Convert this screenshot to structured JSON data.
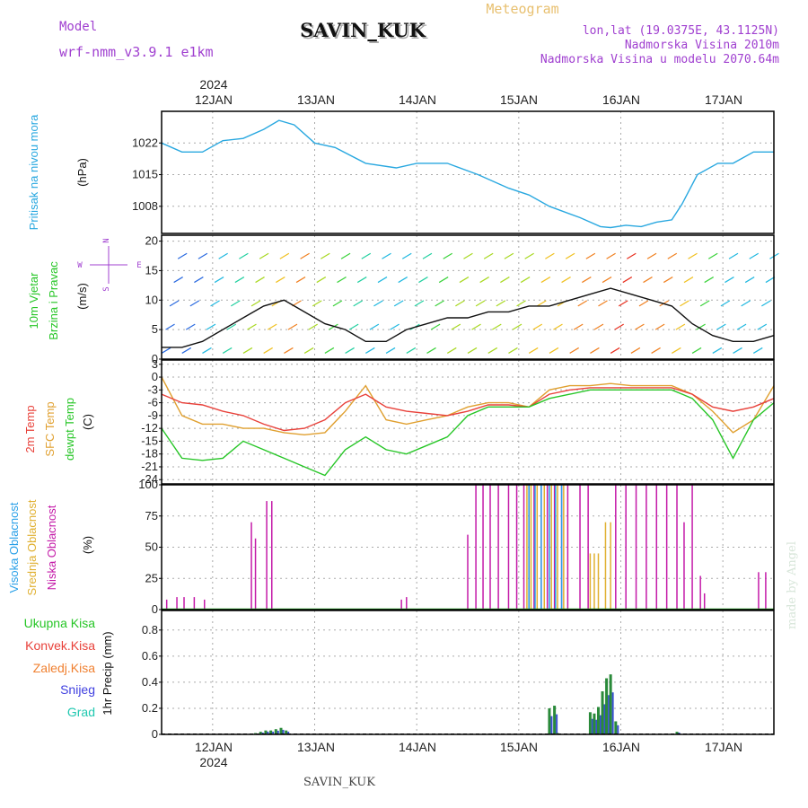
{
  "header": {
    "model_label": "Model",
    "model_name": "wrf-nmm_v3.9.1 e1km",
    "title": "SAVIN_KUK",
    "subtitle": "Meteogram",
    "lonlat": "lon,lat (19.0375E, 43.1125N)",
    "elevation": "Nadmorska Visina 2010m",
    "model_elevation": "Nadmorska Visina u modelu 2070.64m",
    "watermark": "made by Angel",
    "footer": "SAVIN_KUK"
  },
  "colors": {
    "pressure": "#29a8e0",
    "temp2m": "#e8413a",
    "sfc": "#e0a030",
    "dewpt": "#27c627",
    "low": "#c41aa8",
    "mid": "#e0b030",
    "high": "#2aa0e8",
    "grid": "#aaaaaa"
  },
  "chart_data": [
    {
      "type": "line",
      "panel": "pressure",
      "ylabel_left": "Pritisak na nivou mora",
      "ylabel": "(hPa)",
      "x_ticks": [
        "12JAN",
        "13JAN",
        "14JAN",
        "15JAN",
        "16JAN",
        "17JAN"
      ],
      "x_year": "2024",
      "yticks": [
        "1008",
        "1015",
        "1022"
      ],
      "ylim": [
        1002,
        1029
      ],
      "grid": true,
      "series": [
        {
          "x": [
            11.5,
            11.7,
            11.9,
            12.1,
            12.3,
            12.5,
            12.65,
            12.8,
            13.0,
            13.2,
            13.5,
            13.8,
            14.0,
            14.3,
            14.6,
            14.9,
            15.1,
            15.3,
            15.6,
            15.8,
            15.9,
            16.05,
            16.2,
            16.35,
            16.5,
            16.6,
            16.75,
            16.95,
            17.1,
            17.3,
            17.5
          ],
          "values": [
            1022,
            1020,
            1020,
            1022.5,
            1023,
            1025,
            1027,
            1026,
            1022,
            1021,
            1017.5,
            1016.5,
            1017.5,
            1017.5,
            1015,
            1012,
            1010.5,
            1008,
            1005.5,
            1003.5,
            1003.3,
            1003.8,
            1003.5,
            1004.5,
            1005,
            1008.5,
            1015,
            1017.5,
            1017.5,
            1020,
            1020
          ]
        }
      ]
    },
    {
      "type": "scatter",
      "panel": "wind",
      "ylabel_left": "10m Vjetar Brzina i Pravac",
      "ylabel": "(m/s)",
      "compass": [
        "N",
        "E",
        "W",
        "S"
      ],
      "yticks": [
        "0",
        "5",
        "10",
        "15",
        "20"
      ],
      "ylim": [
        0,
        21
      ],
      "grid": true,
      "x": [
        11.5,
        11.7,
        11.9,
        12.1,
        12.3,
        12.5,
        12.7,
        12.9,
        13.1,
        13.3,
        13.5,
        13.7,
        13.9,
        14.1,
        14.3,
        14.5,
        14.7,
        14.9,
        15.1,
        15.3,
        15.5,
        15.7,
        15.9,
        16.1,
        16.3,
        16.5,
        16.7,
        16.9,
        17.1,
        17.3,
        17.5
      ],
      "speed": [
        2,
        2,
        3,
        5,
        7,
        9,
        10,
        8,
        6,
        5,
        3,
        3,
        5,
        6,
        7,
        7,
        8,
        8,
        9,
        9,
        10,
        11,
        12,
        11,
        10,
        9,
        6,
        4,
        3,
        3,
        4
      ]
    },
    {
      "type": "line",
      "panel": "temperature",
      "ylabel_left": "2m Temp",
      "ylabel_mid": "SFC Temp",
      "ylabel_right": "dewpt Temp",
      "ylabel": "(C)",
      "yticks": [
        "3",
        "0",
        "-3",
        "-6",
        "-9",
        "-12",
        "-15",
        "-18",
        "-21",
        "-24"
      ],
      "ylim": [
        -25,
        4
      ],
      "grid": true,
      "x": [
        11.5,
        11.7,
        11.9,
        12.1,
        12.3,
        12.5,
        12.7,
        12.9,
        13.1,
        13.3,
        13.5,
        13.7,
        13.9,
        14.1,
        14.3,
        14.5,
        14.7,
        14.9,
        15.1,
        15.3,
        15.5,
        15.7,
        15.9,
        16.1,
        16.3,
        16.5,
        16.7,
        16.9,
        17.1,
        17.3,
        17.5
      ],
      "series": [
        {
          "name": "2m Temp",
          "values": [
            -4,
            -6,
            -6.5,
            -8,
            -9,
            -11,
            -12.5,
            -12,
            -10,
            -6,
            -4,
            -7,
            -8,
            -8.5,
            -9,
            -8,
            -6.5,
            -6.5,
            -7,
            -4,
            -3,
            -2.5,
            -2.5,
            -2.5,
            -2.5,
            -2.5,
            -4,
            -7,
            -8,
            -7,
            -5
          ]
        },
        {
          "name": "SFC Temp",
          "values": [
            0,
            -9,
            -11,
            -11,
            -12,
            -12,
            -13,
            -13.5,
            -13,
            -8,
            -2,
            -10,
            -11,
            -10,
            -9,
            -7,
            -6,
            -6,
            -7,
            -3,
            -2,
            -2,
            -1.5,
            -2,
            -2,
            -2,
            -4,
            -8,
            -13,
            -10,
            -2
          ]
        },
        {
          "name": "dewpt Temp",
          "values": [
            -12,
            -19,
            -19.5,
            -19,
            -15,
            -17,
            -19,
            -21,
            -23,
            -17,
            -14,
            -17,
            -18,
            -16,
            -14,
            -9,
            -7,
            -7,
            -7,
            -5,
            -4,
            -3,
            -3,
            -3,
            -3,
            -3,
            -5,
            -10,
            -19,
            -10,
            -6
          ]
        }
      ]
    },
    {
      "type": "bar",
      "panel": "clouds",
      "ylabel_left": "Visoka Oblacnost",
      "ylabel_mid": "Srednja Oblacnost",
      "ylabel_right": "Niska Oblacnost",
      "ylabel": "(%)",
      "yticks": [
        "0",
        "25",
        "50",
        "75",
        "100"
      ],
      "ylim": [
        0,
        100
      ],
      "grid": true,
      "series": [
        {
          "name": "Niska Oblacnost",
          "x": [
            11.55,
            11.65,
            11.72,
            11.82,
            11.92,
            12.38,
            12.42,
            12.53,
            12.58,
            13.85,
            13.9,
            14.5,
            14.58,
            14.65,
            14.72,
            14.8,
            14.9,
            14.98,
            15.05,
            15.1,
            15.15,
            15.22,
            15.28,
            15.35,
            15.42,
            15.48,
            15.6,
            15.68,
            15.95,
            16.05,
            16.15,
            16.25,
            16.35,
            16.45,
            16.55,
            16.62,
            16.7,
            16.78,
            16.82,
            17.35,
            17.42
          ],
          "values": [
            8,
            10,
            10,
            10,
            8,
            70,
            57,
            87,
            87,
            8,
            10,
            60,
            100,
            100,
            100,
            100,
            100,
            100,
            100,
            100,
            100,
            100,
            100,
            100,
            100,
            100,
            100,
            100,
            100,
            100,
            100,
            100,
            100,
            100,
            100,
            70,
            100,
            27,
            13,
            30,
            30
          ]
        },
        {
          "name": "Srednja Oblacnost",
          "x": [
            15.08,
            15.12,
            15.18,
            15.25,
            15.32,
            15.38,
            15.44,
            15.7,
            15.74,
            15.78,
            15.85,
            15.9
          ],
          "values": [
            100,
            100,
            100,
            100,
            100,
            100,
            100,
            45,
            45,
            45,
            70,
            70
          ]
        },
        {
          "name": "Visoka Oblacnost",
          "x": [
            15.1,
            15.16,
            15.22,
            15.3,
            15.36,
            15.42
          ],
          "values": [
            100,
            100,
            100,
            100,
            100,
            100
          ]
        }
      ]
    },
    {
      "type": "bar",
      "panel": "precip",
      "legend": [
        "Ukupna Kisa",
        "Konvek.Kisa",
        "Zaledj.Kisa",
        "Snijeg",
        "Grad"
      ],
      "ylabel": "1hr Precip (mm)",
      "yticks": [
        "0",
        "0.2",
        "0.4",
        "0.6",
        "0.8"
      ],
      "ylim": [
        0,
        0.95
      ],
      "grid": true,
      "x": [
        12.42,
        12.47,
        12.52,
        12.57,
        12.62,
        12.67,
        12.72,
        15.3,
        15.35,
        15.38,
        15.7,
        15.74,
        15.78,
        15.82,
        15.86,
        15.9,
        15.95,
        16.55
      ],
      "values": [
        0.01,
        0.02,
        0.03,
        0.03,
        0.04,
        0.05,
        0.03,
        0.2,
        0.22,
        0.01,
        0.17,
        0.16,
        0.21,
        0.33,
        0.43,
        0.46,
        0.1,
        0.02
      ]
    }
  ]
}
